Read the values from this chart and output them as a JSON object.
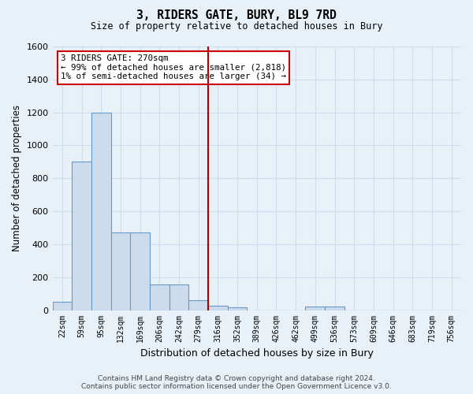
{
  "title": "3, RIDERS GATE, BURY, BL9 7RD",
  "subtitle": "Size of property relative to detached houses in Bury",
  "xlabel": "Distribution of detached houses by size in Bury",
  "ylabel": "Number of detached properties",
  "bin_labels": [
    "22sqm",
    "59sqm",
    "95sqm",
    "132sqm",
    "169sqm",
    "206sqm",
    "242sqm",
    "279sqm",
    "316sqm",
    "352sqm",
    "389sqm",
    "426sqm",
    "462sqm",
    "499sqm",
    "536sqm",
    "573sqm",
    "609sqm",
    "646sqm",
    "683sqm",
    "719sqm",
    "756sqm"
  ],
  "bar_heights": [
    50,
    900,
    1200,
    470,
    470,
    155,
    155,
    60,
    25,
    15,
    0,
    0,
    0,
    20,
    20,
    0,
    0,
    0,
    0,
    0,
    0
  ],
  "bar_color": "#cddcec",
  "bar_edge_color": "#6699cc",
  "vline_x_index": 7,
  "vline_color": "#aa0000",
  "ylim": [
    0,
    1600
  ],
  "yticks": [
    0,
    200,
    400,
    600,
    800,
    1000,
    1200,
    1400,
    1600
  ],
  "legend_title": "3 RIDERS GATE: 270sqm",
  "legend_line1": "← 99% of detached houses are smaller (2,818)",
  "legend_line2": "1% of semi-detached houses are larger (34) →",
  "legend_box_color": "#ffffff",
  "legend_box_edgecolor": "#cc0000",
  "footer_line1": "Contains HM Land Registry data © Crown copyright and database right 2024.",
  "footer_line2": "Contains public sector information licensed under the Open Government Licence v3.0.",
  "bg_color": "#e8f0f8",
  "plot_bg_color": "#e8f0f8",
  "grid_color": "#ccddee"
}
